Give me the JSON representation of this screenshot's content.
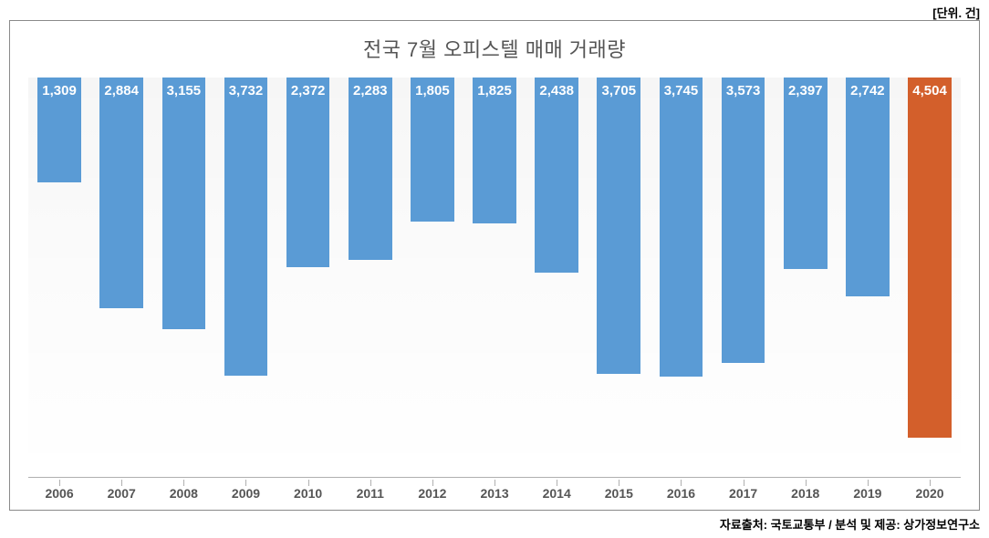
{
  "unit_label": "[단위. 건]",
  "chart": {
    "type": "bar",
    "title": "전국 7월 오피스텔 매매 거래량",
    "title_fontsize": 22,
    "title_color": "#555555",
    "categories": [
      "2006",
      "2007",
      "2008",
      "2009",
      "2010",
      "2011",
      "2012",
      "2013",
      "2014",
      "2015",
      "2016",
      "2017",
      "2018",
      "2019",
      "2020"
    ],
    "values": [
      1309,
      2884,
      3155,
      3732,
      2372,
      2283,
      1805,
      1825,
      2438,
      3705,
      3745,
      3573,
      2397,
      2742,
      4504
    ],
    "value_labels": [
      "1,309",
      "2,884",
      "3,155",
      "3,732",
      "2,372",
      "2,283",
      "1,805",
      "1,825",
      "2,438",
      "3,705",
      "3,745",
      "3,573",
      "2,397",
      "2,742",
      "4,504"
    ],
    "bar_colors": [
      "#5a9bd5",
      "#5a9bd5",
      "#5a9bd5",
      "#5a9bd5",
      "#5a9bd5",
      "#5a9bd5",
      "#5a9bd5",
      "#5a9bd5",
      "#5a9bd5",
      "#5a9bd5",
      "#5a9bd5",
      "#5a9bd5",
      "#5a9bd5",
      "#5a9bd5",
      "#d35f2b"
    ],
    "background_color": "#ffffff",
    "border_color": "#8a8a8a",
    "axis_color": "#b0b0b0",
    "value_label_color": "#ffffff",
    "value_label_fontsize": 15,
    "x_label_fontsize": 14,
    "x_label_color": "#555555",
    "bar_width_ratio": 0.7,
    "ylim": [
      0,
      5000
    ]
  },
  "source_label": "자료출처: 국토교통부 / 분석 및 제공: 상가정보연구소"
}
